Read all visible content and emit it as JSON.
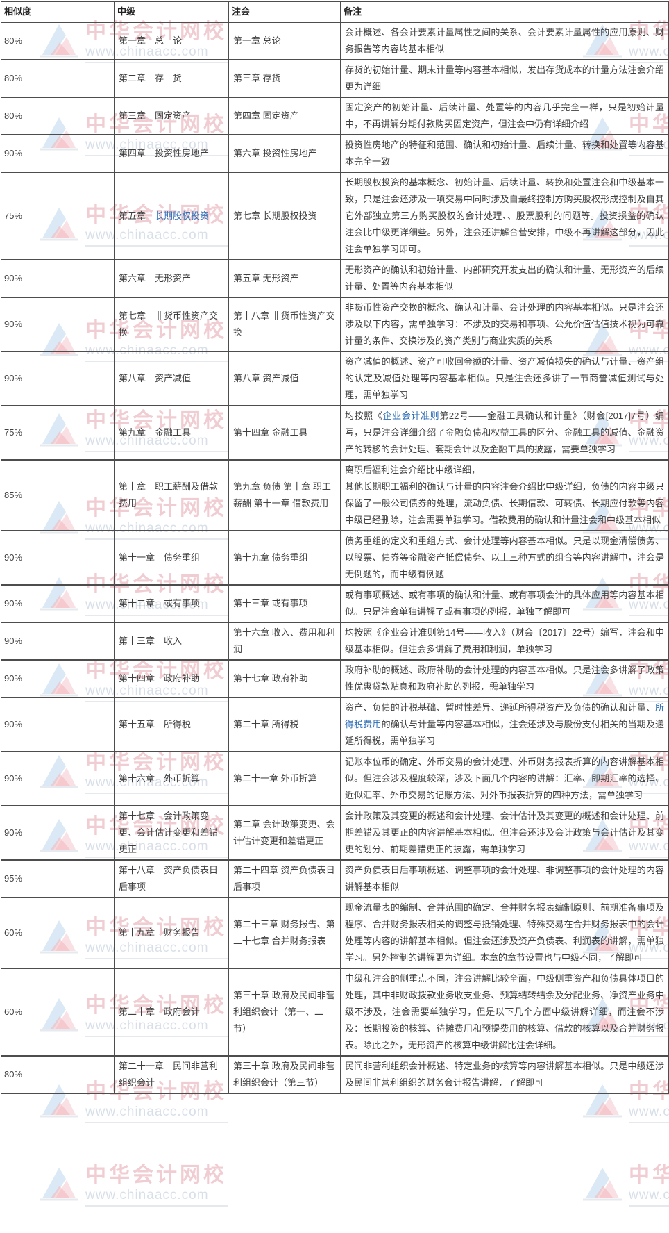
{
  "colors": {
    "link": "#2e6fb7",
    "border": "#4d4d4d",
    "text": "#3f3f3f",
    "watermark_brand": "#e0929d",
    "watermark_url": "#a9b9cf"
  },
  "watermark": {
    "brand": "中华会计网校",
    "url": "www.chinaacc.com",
    "logo": "chinaacc-triangle-logo-icon"
  },
  "table": {
    "headers": [
      "相似度",
      "中级",
      "注会",
      "备注"
    ],
    "rows": [
      {
        "similarity": "80%",
        "mid": [
          {
            "t": "第一章　总　论"
          }
        ],
        "cpa": "第一章 总论",
        "remark": [
          {
            "t": "会计概述、各会计要素计量属性之间的关系、会计要素计量属性的应用原则、财务报告等内容均基本相似"
          }
        ]
      },
      {
        "similarity": "80%",
        "mid": [
          {
            "t": "第二章　存　货"
          }
        ],
        "cpa": "第三章 存货",
        "remark": [
          {
            "t": "存货的初始计量、期末计量等内容基本相似，发出存货成本的计量方法注会介绍更为详细"
          }
        ]
      },
      {
        "similarity": "80%",
        "mid": [
          {
            "t": "第三章　固定资产"
          }
        ],
        "cpa": "第四章 固定资产",
        "remark": [
          {
            "t": "固定资产的初始计量、后续计量、处置等的内容几乎完全一样，只是初始计量中，不再讲解分期付款购买固定资产，但注会中仍有详细介绍"
          }
        ]
      },
      {
        "similarity": "90%",
        "mid": [
          {
            "t": "第四章　投资性房地产"
          }
        ],
        "cpa": "第六章 投资性房地产",
        "remark": [
          {
            "t": "投资性房地产的特征和范围、确认和初始计量、后续计量、转换和处置等内容基本完全一致"
          }
        ]
      },
      {
        "similarity": "75%",
        "mid": [
          {
            "t": "第五章　"
          },
          {
            "t": "长期股权投资",
            "link": true
          }
        ],
        "cpa": "第七章 长期股权投资",
        "remark": [
          {
            "t": "长期股权投资的基本概念、初始计量、后续计量、转换和处置注会和中级基本一致，只是注会还涉及一项交易中同时涉及自最终控制方购买股权形成控制及自其它外部独立第三方购买股权的会计处理、、股票股利的问题等。投资损益的确认注会比中级更详细些。另外，注会还讲解合营安排，中级不再讲解这部分，因此注会单独学习即可。"
          }
        ]
      },
      {
        "similarity": "90%",
        "mid": [
          {
            "t": "第六章　无形资产"
          }
        ],
        "cpa": "第五章 无形资产",
        "remark": [
          {
            "t": "无形资产的确认和初始计量、内部研究开发支出的确认和计量、无形资产的后续计量、处置等内容基本相似"
          }
        ]
      },
      {
        "similarity": "90%",
        "mid": [
          {
            "t": "第七章　非货币性资产交换"
          }
        ],
        "cpa": "第十八章 非货币性资产交换",
        "remark": [
          {
            "t": "非货币性资产交换的概念、确认和计量、会计处理的内容基本相似。只是注会还涉及以下内容，需单独学习：不涉及的交易和事项、公允价值估值技术视为可靠计量的条件、交换涉及的资产类别与商业实质的关系"
          }
        ]
      },
      {
        "similarity": "90%",
        "mid": [
          {
            "t": "第八章　资产减值"
          }
        ],
        "cpa": "第八章 资产减值",
        "remark": [
          {
            "t": "资产减值的概述、资产可收回金额的计量、资产减值损失的确认与计量、资产组的认定及减值处理等内容基本相似。只是注会还多讲了一节商誉减值测试与处理，需单独学习"
          }
        ]
      },
      {
        "similarity": "75%",
        "mid": [
          {
            "t": "第九章　金融工具"
          }
        ],
        "cpa": "第十四章 金融工具",
        "remark": [
          {
            "t": "均按照《"
          },
          {
            "t": "企业会计准则",
            "link": true
          },
          {
            "t": "第22号——金融工具确认和计量》（财会[2017]7号）编写，只是注会详细介绍了金融负债和权益工具的区分、金融工具的减值、金融资产的转移的会计处理、套期会计以及金融工具的披露，需要单独学习"
          }
        ]
      },
      {
        "similarity": "85%",
        "mid": [
          {
            "t": "第十章　职工薪酬及借款费用"
          }
        ],
        "cpa": "第九章 负债 第十章 职工薪酬 第十一章 借款费用",
        "remark": [
          {
            "t": "离职后福利注会介绍比中级详细，\n其他长期职工福利的确认与计量的内容注会介绍比中级详细，负债的内容中级只保留了一般公司债券的处理，流动负债、长期借款、可转债、长期应付款等内容中级已经删除，注会需要单独学习。借款费用的确认和计量注会和中级基本相似"
          }
        ]
      },
      {
        "similarity": "90%",
        "mid": [
          {
            "t": "第十一章　债务重组"
          }
        ],
        "cpa": "第十九章 债务重组",
        "remark": [
          {
            "t": "债务重组的定义和重组方式、会计处理等内容基本相似。只是以现金清偿债务、以股票、债券等金融资产抵偿债务、以上三种方式的组合等内容讲解中，注会是无例题的，而中级有例题"
          }
        ]
      },
      {
        "similarity": "90%",
        "mid": [
          {
            "t": "第十二章　或有事项"
          }
        ],
        "cpa": "第十三章 或有事项",
        "remark": [
          {
            "t": "或有事项概述、或有事项的确认和计量、或有事项会计的具体应用等内容基本相似。只是注会单独讲解了或有事项的列报，单独了解即可"
          }
        ]
      },
      {
        "similarity": "90%",
        "mid": [
          {
            "t": "第十三章　收入"
          }
        ],
        "cpa": "第十六章 收入、费用和利润",
        "remark": [
          {
            "t": "均按照《企业会计准则第14号——收入》（财会〔2017〕22号）编写，注会和中级基本相似。但注会多讲解了费用和利润，单独学习"
          }
        ]
      },
      {
        "similarity": "90%",
        "mid": [
          {
            "t": "第十四章　政府补助"
          }
        ],
        "cpa": "第十七章 政府补助",
        "remark": [
          {
            "t": "政府补助的概述、政府补助的会计处理的内容基本相似。只是注会多讲解了政策性优惠贷款贴息和政府补助的列报，需单独学习"
          }
        ]
      },
      {
        "similarity": "90%",
        "mid": [
          {
            "t": "第十五章　所得税"
          }
        ],
        "cpa": "第二十章 所得税",
        "remark": [
          {
            "t": "资产、负债的计税基础、暂时性差异、递延所得税资产及负债的确认和计量、"
          },
          {
            "t": "所得税费用",
            "link": true
          },
          {
            "t": "的确认与计量等内容基本相似，注会还涉及与股份支付相关的当期及递延所得税，需单独学习"
          }
        ]
      },
      {
        "similarity": "90%",
        "mid": [
          {
            "t": "第十六章　外币折算"
          }
        ],
        "cpa": "第二十一章 外币折算",
        "remark": [
          {
            "t": "记账本位币的确定、外币交易的会计处理、外币财务报表折算的内容讲解基本相似。但注会涉及程度较深，涉及下面几个内容的讲解：汇率、即期汇率的选择、近似汇率、外币交易的记账方法、对外币报表折算的四种方法，需单独学习"
          }
        ]
      },
      {
        "similarity": "90%",
        "mid": [
          {
            "t": "第十七章　会计政策变更、会计估计变更和差错更正"
          }
        ],
        "cpa": "第二章 会计政策变更、会计估计变更和差错更正",
        "remark": [
          {
            "t": "会计政策及其变更的概述和会计处理、会计估计及其变更的概述和会计处理、前期差错及其更正的内容讲解基本相似。但注会还涉及会计政策与会计估计及其变更的划分、前期差错更正的披露，需单独学习"
          }
        ]
      },
      {
        "similarity": "95%",
        "mid": [
          {
            "t": "第十八章　资产负债表日后事项"
          }
        ],
        "cpa": "第二十四章 资产负债表日后事项",
        "remark": [
          {
            "t": "资产负债表日后事项概述、调整事项的会计处理、非调整事项的会计处理的内容讲解基本相似"
          }
        ]
      },
      {
        "similarity": "60%",
        "mid": [
          {
            "t": "第十九章　财务报告"
          }
        ],
        "cpa": "第二十三章 财务报告、第二十七章 合并财务报表",
        "remark": [
          {
            "t": "现金流量表的编制、合并范围的确定、合并财务报表编制原则、前期准备事项及程序、合并财务报表相关的调整与抵销处理、特殊交易在合并财务报表中的会计处理等内容的讲解基本相似。但注会还涉及资产负债表、利润表的讲解，需单独学习。另外控制的讲解更为详细。本章的章节设置也与中级不同，了解即可"
          }
        ]
      },
      {
        "similarity": "60%",
        "mid": [
          {
            "t": "第二十章　政府会计"
          }
        ],
        "cpa": "第三十章 政府及民间非营利组织会计（第一、二节）",
        "remark": [
          {
            "t": "中级和注会的侧重点不同，注会讲解比较全面，中级侧重资产和负债具体项目的处理，其中非财政拨款业务收支业务、预算结转结余及分配业务、净资产业务中级不涉及，注会需要单独学习，但是以下几个方面中级讲解详细，而注会不涉及：长期投资的核算、待摊费用和预提费用的核算、借款的核算以及合并财务报表。除此之外，无形资产的核算中级讲解比注会详细。"
          }
        ]
      },
      {
        "similarity": "80%",
        "mid": [
          {
            "t": "第二十一章　民间非营利组织会计"
          }
        ],
        "cpa": "第三十章 政府及民间非营利组织会计（第三节）",
        "remark": [
          {
            "t": "民间非营利组织会计概述、特定业务的核算等内容讲解基本相似。只是中级还涉及民间非营利组织的财务会计报告讲解，了解即可"
          }
        ]
      }
    ]
  }
}
